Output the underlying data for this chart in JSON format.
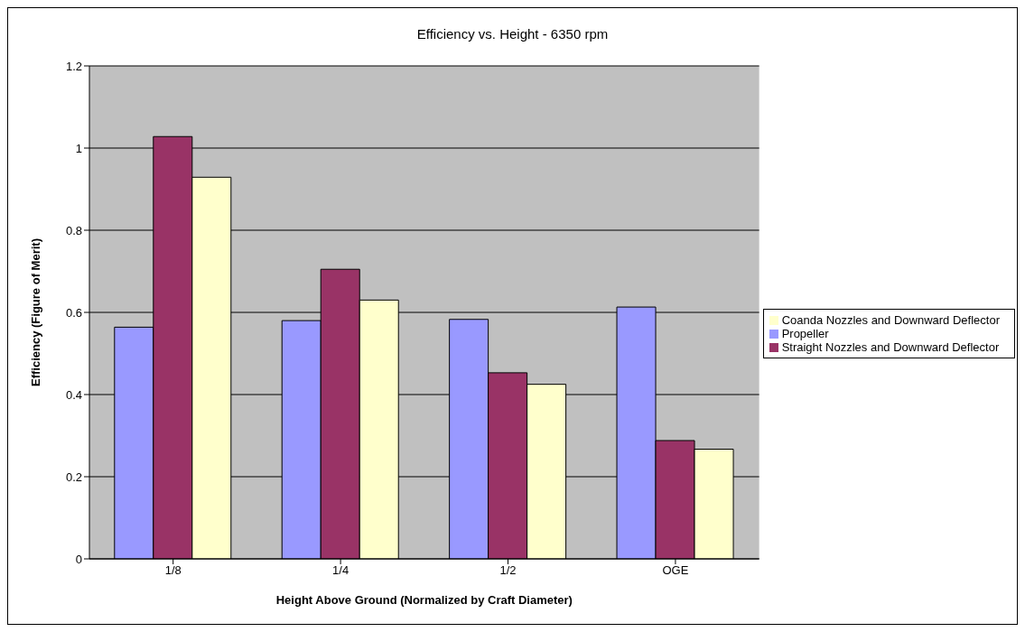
{
  "chart_data": {
    "type": "bar",
    "title": "Efficiency vs. Height - 6350 rpm",
    "xlabel": "Height Above Ground (Normalized by Craft Diameter)",
    "ylabel": "Efficiency (Figure of Merit)",
    "categories": [
      "1/8",
      "1/4",
      "1/2",
      "OGE"
    ],
    "series": [
      {
        "name": "Propeller",
        "color": "#9999ff",
        "values": [
          0.564,
          0.58,
          0.583,
          0.613
        ]
      },
      {
        "name": "Straight Nozzles and Downward Deflector",
        "color": "#993366",
        "values": [
          1.028,
          0.705,
          0.453,
          0.288
        ]
      },
      {
        "name": "Coanda Nozzles and Downward Deflector",
        "color": "#ffffcc",
        "values": [
          0.929,
          0.63,
          0.425,
          0.267
        ]
      }
    ],
    "ylim": [
      0,
      1.2
    ],
    "yticks": [
      0,
      0.2,
      0.4,
      0.6,
      0.8,
      1,
      1.2
    ],
    "grid": "y",
    "legend": "right"
  }
}
